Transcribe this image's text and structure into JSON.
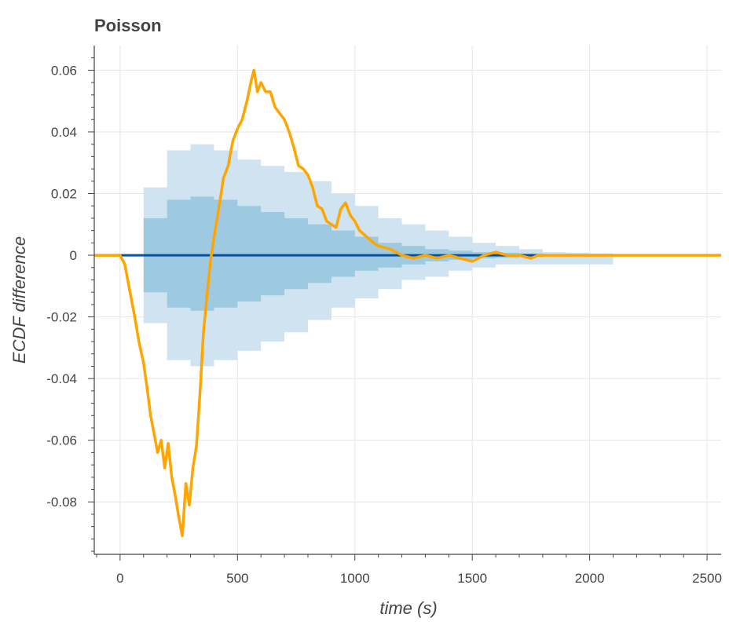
{
  "chart_data": {
    "type": "line",
    "title": "Poisson",
    "xlabel": "time (s)",
    "ylabel": "ECDF difference",
    "xlim": [
      -110,
      2560
    ],
    "ylim": [
      -0.097,
      0.068
    ],
    "xticks": [
      0,
      500,
      1000,
      1500,
      2000,
      2500
    ],
    "xtick_labels": [
      "0",
      "500",
      "1000",
      "1500",
      "2000",
      "2500"
    ],
    "yticks": [
      -0.08,
      -0.06,
      -0.04,
      -0.02,
      0,
      0.02,
      0.04,
      0.06
    ],
    "ytick_labels": [
      "-0.08",
      "-0.06",
      "-0.04",
      "-0.02",
      "0",
      "0.02",
      "0.04",
      "0.06"
    ],
    "grid": true,
    "colors": {
      "outer_band": "#cfe3f1",
      "inner_band": "#9ecae1",
      "reference_line": "#08519c",
      "observed_line": "#ffa500",
      "grid": "#e5e5e5",
      "axis": "#444444"
    },
    "bands": {
      "outer": {
        "x": [
          0,
          100,
          200,
          300,
          400,
          500,
          600,
          700,
          800,
          900,
          1000,
          1100,
          1200,
          1300,
          1400,
          1500,
          1600,
          1700,
          1800,
          1900,
          2000,
          2100,
          2200,
          2300,
          2400,
          2450
        ],
        "upper": [
          0.0,
          0.022,
          0.034,
          0.036,
          0.034,
          0.031,
          0.029,
          0.027,
          0.024,
          0.02,
          0.016,
          0.012,
          0.01,
          0.008,
          0.006,
          0.004,
          0.003,
          0.002,
          0.001,
          0.0008,
          0.0006,
          0.0004,
          0.0003,
          0.0002,
          0.0001,
          0.0
        ],
        "lower": [
          0.0,
          -0.022,
          -0.034,
          -0.036,
          -0.034,
          -0.031,
          -0.028,
          -0.025,
          -0.021,
          -0.017,
          -0.014,
          -0.011,
          -0.008,
          -0.007,
          -0.005,
          -0.004,
          -0.003,
          -0.003,
          -0.003,
          -0.003,
          -0.003,
          -0.0004,
          -0.0003,
          -0.0002,
          -0.0001,
          0.0
        ]
      },
      "inner": {
        "x": [
          0,
          100,
          200,
          300,
          400,
          500,
          600,
          700,
          800,
          900,
          1000,
          1100,
          1200,
          1300,
          1400,
          1500,
          1600,
          1700,
          1800
        ],
        "upper": [
          0.0,
          0.012,
          0.018,
          0.019,
          0.018,
          0.016,
          0.014,
          0.012,
          0.01,
          0.008,
          0.006,
          0.004,
          0.003,
          0.002,
          0.0015,
          0.001,
          0.0008,
          0.0006,
          0.0
        ],
        "lower": [
          0.0,
          -0.012,
          -0.017,
          -0.018,
          -0.017,
          -0.015,
          -0.013,
          -0.011,
          -0.009,
          -0.007,
          -0.005,
          -0.004,
          -0.003,
          -0.002,
          -0.0015,
          -0.001,
          -0.0008,
          -0.0006,
          0.0
        ]
      }
    },
    "series": [
      {
        "role": "reference",
        "x": [
          -110,
          1780
        ],
        "y": [
          0,
          0
        ]
      },
      {
        "role": "observed",
        "x": [
          -110,
          0,
          20,
          40,
          60,
          80,
          100,
          115,
          130,
          145,
          160,
          175,
          190,
          205,
          220,
          235,
          250,
          265,
          280,
          295,
          310,
          325,
          340,
          355,
          370,
          385,
          400,
          420,
          440,
          460,
          480,
          500,
          520,
          540,
          560,
          570,
          585,
          600,
          620,
          640,
          660,
          680,
          700,
          720,
          740,
          760,
          780,
          800,
          820,
          840,
          860,
          880,
          900,
          920,
          940,
          960,
          980,
          1000,
          1020,
          1050,
          1080,
          1100,
          1150,
          1200,
          1250,
          1300,
          1350,
          1400,
          1450,
          1500,
          1550,
          1600,
          1650,
          1700,
          1750,
          1780,
          2560
        ],
        "y": [
          0,
          0,
          -0.003,
          -0.011,
          -0.019,
          -0.028,
          -0.035,
          -0.043,
          -0.052,
          -0.058,
          -0.064,
          -0.06,
          -0.069,
          -0.061,
          -0.072,
          -0.078,
          -0.085,
          -0.091,
          -0.074,
          -0.081,
          -0.069,
          -0.062,
          -0.045,
          -0.025,
          -0.013,
          -0.002,
          0.006,
          0.015,
          0.025,
          0.029,
          0.037,
          0.041,
          0.044,
          0.05,
          0.057,
          0.06,
          0.053,
          0.056,
          0.053,
          0.053,
          0.048,
          0.046,
          0.044,
          0.04,
          0.035,
          0.029,
          0.028,
          0.026,
          0.022,
          0.016,
          0.015,
          0.011,
          0.01,
          0.009,
          0.015,
          0.017,
          0.013,
          0.011,
          0.008,
          0.006,
          0.004,
          0.003,
          0.002,
          0.0,
          -0.001,
          0.0,
          -0.001,
          0.0,
          -0.001,
          -0.002,
          0.0,
          0.001,
          0.0,
          0.0,
          -0.001,
          0.0,
          0.0
        ]
      }
    ]
  }
}
